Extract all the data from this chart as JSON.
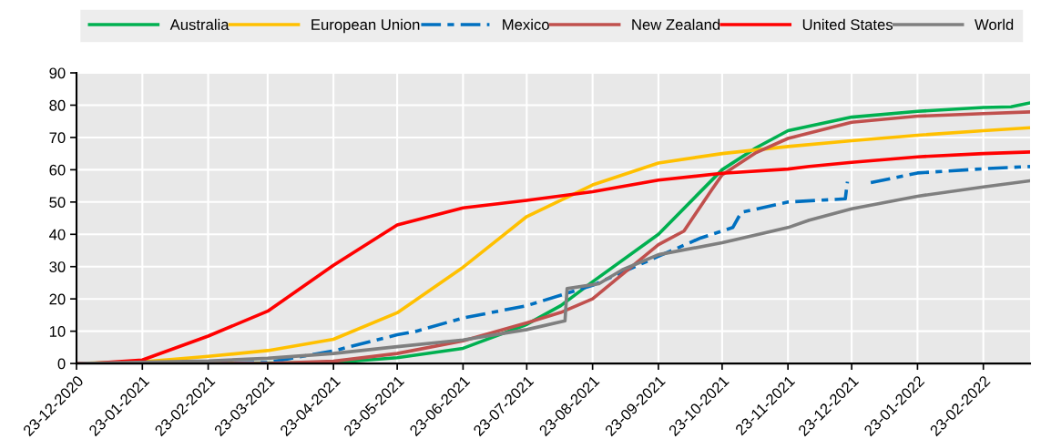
{
  "chart_data": {
    "type": "line",
    "xlim": [
      "2020-12-23",
      "2022-03-17"
    ],
    "xticks": [
      {
        "value": "2020-12-23",
        "label": "23-12-2020"
      },
      {
        "value": "2021-01-23",
        "label": "23-01-2021"
      },
      {
        "value": "2021-02-23",
        "label": "23-02-2021"
      },
      {
        "value": "2021-03-23",
        "label": "23-03-2021"
      },
      {
        "value": "2021-04-23",
        "label": "23-04-2021"
      },
      {
        "value": "2021-05-23",
        "label": "23-05-2021"
      },
      {
        "value": "2021-06-23",
        "label": "23-06-2021"
      },
      {
        "value": "2021-07-23",
        "label": "23-07-2021"
      },
      {
        "value": "2021-08-23",
        "label": "23-08-2021"
      },
      {
        "value": "2021-09-23",
        "label": "23-09-2021"
      },
      {
        "value": "2021-10-23",
        "label": "23-10-2021"
      },
      {
        "value": "2021-11-23",
        "label": "23-11-2021"
      },
      {
        "value": "2021-12-23",
        "label": "23-12-2021"
      },
      {
        "value": "2022-01-23",
        "label": "23-01-2022"
      },
      {
        "value": "2022-02-23",
        "label": "23-02-2022"
      }
    ],
    "ylim": [
      0,
      90
    ],
    "yticks": [
      0,
      10,
      20,
      30,
      40,
      50,
      60,
      70,
      80,
      90
    ],
    "grid": true,
    "legend": "top",
    "line_style": "solid",
    "series": [
      {
        "name": "Australia",
        "color": "#00b050",
        "x": [
          "2020-12-23",
          "2021-02-22",
          "2021-04-23",
          "2021-05-23",
          "2021-06-23",
          "2021-07-23",
          "2021-08-08",
          "2021-08-23",
          "2021-09-23",
          "2021-10-23",
          "2021-11-08",
          "2021-11-23",
          "2021-12-23",
          "2022-01-23",
          "2022-02-23",
          "2022-03-08",
          "2022-03-17"
        ],
        "values": [
          0,
          0,
          0.3,
          1.8,
          4.7,
          12.1,
          17.9,
          25.3,
          40,
          60,
          66.8,
          72.1,
          76.3,
          78.1,
          79.3,
          79.5,
          80.7
        ]
      },
      {
        "name": "European Union",
        "color": "#ffc000",
        "x": [
          "2020-12-23",
          "2021-01-23",
          "2021-02-23",
          "2021-03-23",
          "2021-04-23",
          "2021-05-23",
          "2021-06-23",
          "2021-07-23",
          "2021-08-23",
          "2021-09-23",
          "2021-10-23",
          "2021-11-23",
          "2021-12-23",
          "2022-01-23",
          "2022-02-23",
          "2022-03-17"
        ],
        "values": [
          0,
          0.5,
          2.2,
          4,
          7.5,
          15.7,
          29.8,
          45.5,
          55.3,
          62.1,
          65,
          67.2,
          69,
          70.7,
          72.1,
          73
        ]
      },
      {
        "name": "Mexico",
        "color": "#0070c0",
        "line_style": "dashed",
        "x": [
          "2020-12-23",
          "2021-02-23",
          "2021-03-23",
          "2021-04-23",
          "2021-05-23",
          "2021-06-01",
          "2021-06-23",
          "2021-07-23",
          "2021-08-23",
          "2021-09-23",
          "2021-10-13",
          "2021-10-28",
          "2021-11-01",
          "2021-11-23",
          "2021-12-20",
          "2021-12-21",
          "2021-12-26",
          "2022-01-01",
          "2022-01-23",
          "2022-02-23",
          "2022-03-17"
        ],
        "values": [
          0,
          0,
          0.3,
          3.9,
          8.9,
          10,
          14.1,
          17.9,
          24.2,
          33.2,
          38.9,
          42.1,
          46.8,
          50,
          51,
          56.3,
          null,
          56,
          59,
          60.3,
          61
        ]
      },
      {
        "name": "New Zealand",
        "color": "#c0504d",
        "x": [
          "2020-12-23",
          "2021-03-23",
          "2021-04-23",
          "2021-05-23",
          "2021-06-23",
          "2021-07-23",
          "2021-08-08",
          "2021-08-23",
          "2021-09-23",
          "2021-10-05",
          "2021-10-18",
          "2021-10-23",
          "2021-11-08",
          "2021-11-23",
          "2021-12-23",
          "2022-01-23",
          "2022-02-23",
          "2022-03-17"
        ],
        "values": [
          0,
          0,
          0.7,
          3.1,
          7,
          12.6,
          15.8,
          20,
          36.8,
          41,
          53.7,
          58.4,
          65.3,
          69.7,
          74.7,
          76.6,
          77.4,
          77.9
        ]
      },
      {
        "name": "United States",
        "color": "#ff0000",
        "x": [
          "2020-12-23",
          "2020-12-30",
          "2021-01-23",
          "2021-02-23",
          "2021-03-23",
          "2021-04-23",
          "2021-05-23",
          "2021-06-23",
          "2021-07-23",
          "2021-08-23",
          "2021-09-23",
          "2021-10-23",
          "2021-11-23",
          "2021-12-03",
          "2021-12-23",
          "2022-01-23",
          "2022-02-23",
          "2022-03-17"
        ],
        "values": [
          0,
          0,
          1.1,
          8.5,
          16.2,
          30.4,
          42.9,
          48.2,
          50.5,
          53.2,
          56.8,
          58.9,
          60.2,
          61,
          62.3,
          64,
          65,
          65.5
        ]
      },
      {
        "name": "World",
        "color": "#7f7f7f",
        "x": [
          "2020-12-23",
          "2021-02-23",
          "2021-03-23",
          "2021-04-23",
          "2021-05-23",
          "2021-06-23",
          "2021-07-23",
          "2021-08-10",
          "2021-08-11",
          "2021-08-26",
          "2021-09-06",
          "2021-09-23",
          "2021-10-23",
          "2021-11-23",
          "2021-12-03",
          "2021-12-23",
          "2022-01-23",
          "2022-02-23",
          "2022-03-17"
        ],
        "values": [
          0,
          0.8,
          1.6,
          3.1,
          5.2,
          7.3,
          10.5,
          13.2,
          23.2,
          24.7,
          29,
          33.7,
          37.4,
          42.1,
          44.4,
          47.9,
          51.8,
          54.7,
          56.6
        ]
      }
    ]
  }
}
